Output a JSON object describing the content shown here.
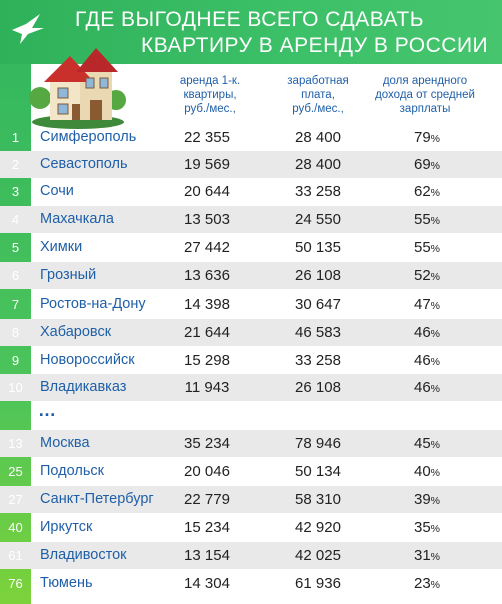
{
  "header": {
    "title_line1": "ГДЕ ВЫГОДНЕЕ ВСЕГО СДАВАТЬ",
    "title_line2": "КВАРТИРУ В АРЕНДУ В РОССИИ"
  },
  "columns": {
    "rent": [
      "аренда 1-к.",
      "квартиры,",
      "руб./мес.,"
    ],
    "salary": [
      "заработная",
      "плата,",
      "руб./мес.,"
    ],
    "share": [
      "доля арендного",
      "дохода от средней",
      "зарплаты"
    ]
  },
  "ellipsis": "…",
  "rows": [
    {
      "rank": "1",
      "city": "Симферополь",
      "rent": "22 355",
      "salary": "28 400",
      "share": "79",
      "unit": "%"
    },
    {
      "rank": "2",
      "city": "Севастополь",
      "rent": "19 569",
      "salary": "28 400",
      "share": "69",
      "unit": "%"
    },
    {
      "rank": "3",
      "city": "Сочи",
      "rent": "20 644",
      "salary": "33 258",
      "share": "62",
      "unit": "%"
    },
    {
      "rank": "4",
      "city": "Махачкала",
      "rent": "13 503",
      "salary": "24 550",
      "share": "55",
      "unit": "%"
    },
    {
      "rank": "5",
      "city": "Химки",
      "rent": "27 442",
      "salary": "50 135",
      "share": "55",
      "unit": "%"
    },
    {
      "rank": "6",
      "city": "Грозный",
      "rent": "13 636",
      "salary": "26 108",
      "share": "52",
      "unit": "%"
    },
    {
      "rank": "7",
      "city": "Ростов-на-Дону",
      "rent": "14 398",
      "salary": "30 647",
      "share": "47",
      "unit": "%"
    },
    {
      "rank": "8",
      "city": "Хабаровск",
      "rent": "21 644",
      "salary": "46 583",
      "share": "46",
      "unit": "%"
    },
    {
      "rank": "9",
      "city": "Новороссийск",
      "rent": "15 298",
      "salary": "33 258",
      "share": "46",
      "unit": "%"
    },
    {
      "rank": "10",
      "city": "Владикавказ",
      "rent": "11 943",
      "salary": "26 108",
      "share": "46",
      "unit": "%"
    },
    {
      "rank": "13",
      "city": "Москва",
      "rent": "35 234",
      "salary": "78 946",
      "share": "45",
      "unit": "%"
    },
    {
      "rank": "25",
      "city": "Подольск",
      "rent": "20 046",
      "salary": "50 134",
      "share": "40",
      "unit": "%"
    },
    {
      "rank": "27",
      "city": "Санкт-Петербург",
      "rent": "22 779",
      "salary": "58 310",
      "share": "39",
      "unit": "%"
    },
    {
      "rank": "40",
      "city": "Иркутск",
      "rent": "15 234",
      "salary": "42 920",
      "share": "35",
      "unit": "%"
    },
    {
      "rank": "61",
      "city": "Владивосток",
      "rent": "13 154",
      "salary": "42 025",
      "share": "31",
      "unit": "%"
    },
    {
      "rank": "76",
      "city": "Тюмень",
      "rent": "14 304",
      "salary": "61 936",
      "share": "23",
      "unit": "%"
    }
  ],
  "colors": {
    "header_green": "#3cc068",
    "city_blue": "#1f5fa8",
    "alt_row": "#e9e9e9"
  },
  "icons": [
    "bird-logo-icon",
    "house-illustration-icon"
  ]
}
